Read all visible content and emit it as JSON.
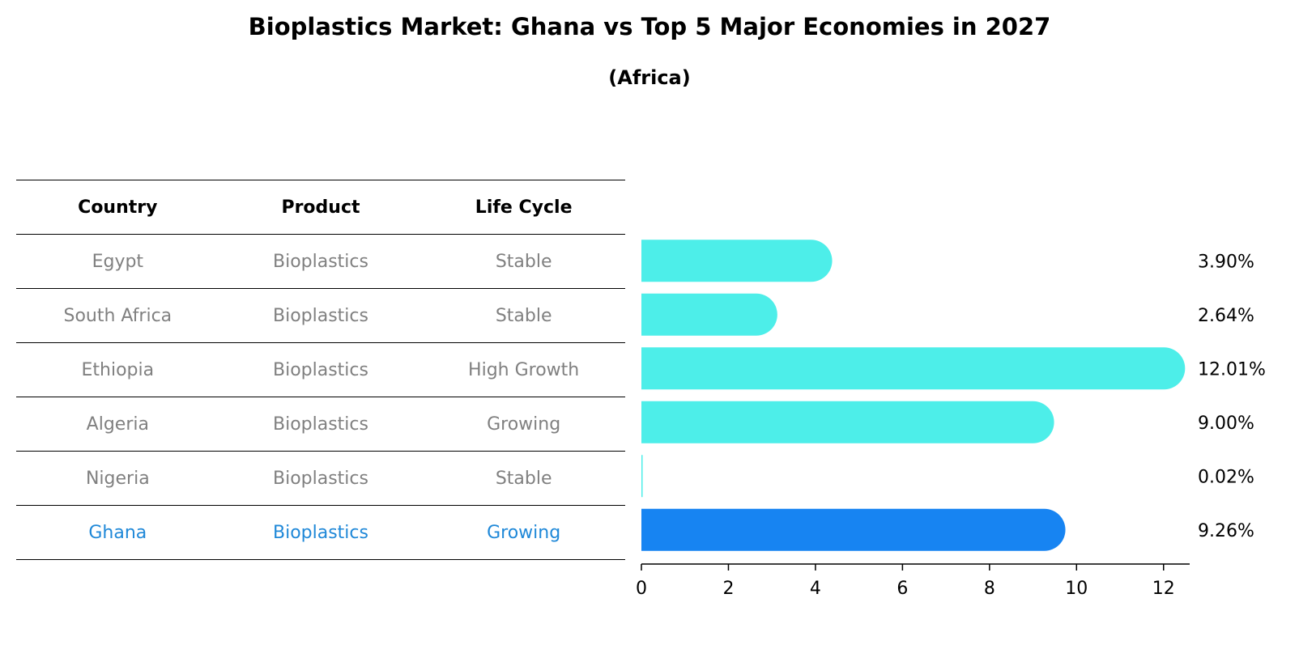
{
  "title": "Bioplastics Market: Ghana vs Top 5 Major Economies in 2027",
  "subtitle": "(Africa)",
  "table": {
    "headers": [
      "Country",
      "Product",
      "Life Cycle"
    ],
    "rows": [
      {
        "country": "Egypt",
        "product": "Bioplastics",
        "life_cycle": "Stable"
      },
      {
        "country": "South Africa",
        "product": "Bioplastics",
        "life_cycle": "Stable"
      },
      {
        "country": "Ethiopia",
        "product": "Bioplastics",
        "life_cycle": "High Growth"
      },
      {
        "country": "Algeria",
        "product": "Bioplastics",
        "life_cycle": "Growing"
      },
      {
        "country": "Nigeria",
        "product": "Bioplastics",
        "life_cycle": "Stable"
      },
      {
        "country": "Ghana",
        "product": "Bioplastics",
        "life_cycle": "Growing"
      }
    ]
  },
  "colors": {
    "bar": "#4deee9",
    "highlight_bar": "#1784f2",
    "highlight_text": "#1f88d8",
    "muted_text": "#808080"
  },
  "chart_data": {
    "type": "bar",
    "orientation": "horizontal",
    "categories": [
      "Egypt",
      "South Africa",
      "Ethiopia",
      "Algeria",
      "Nigeria",
      "Ghana"
    ],
    "values": [
      3.9,
      2.64,
      12.01,
      9.0,
      0.02,
      9.26
    ],
    "value_labels": [
      "3.90%",
      "2.64%",
      "12.01%",
      "9.00%",
      "0.02%",
      "9.26%"
    ],
    "highlight": "Ghana",
    "xlim": [
      0,
      12.6
    ],
    "xticks": [
      0,
      2,
      4,
      6,
      8,
      10,
      12
    ],
    "xlabel": "",
    "ylabel": "",
    "grid": false
  }
}
